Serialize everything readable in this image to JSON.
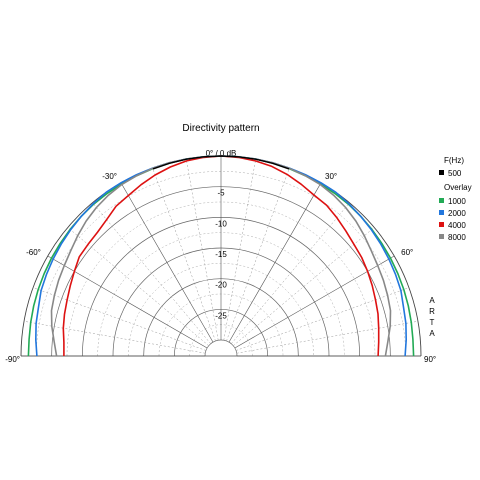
{
  "chart_data": {
    "type": "polar-line",
    "title": "Directivity pattern",
    "angle_unit": "deg",
    "angle_range": [
      -90,
      90
    ],
    "radial_range_db": [
      -30,
      0
    ],
    "angle_tick_labels": [
      "-90°",
      "-60°",
      "-30°",
      "0° / 0 dB",
      "30°",
      "60°",
      "90°"
    ],
    "radial_tick_labels": [
      "-5",
      "-10",
      "-15",
      "-20",
      "-25"
    ],
    "legend": {
      "placement": "right",
      "header": "F(Hz)",
      "reference": {
        "label": "500",
        "color": "#000000"
      },
      "overlay_header": "Overlay",
      "overlay_items": [
        {
          "label": "1000",
          "color": "#22aa55"
        },
        {
          "label": "2000",
          "color": "#2277dd"
        },
        {
          "label": "4000",
          "color": "#dd1111"
        },
        {
          "label": "8000",
          "color": "#888888"
        }
      ]
    },
    "watermark": "ARTA",
    "series": [
      {
        "name": "1000",
        "color": "#22aa55",
        "angles": [
          -90,
          -85,
          -80,
          -75,
          -70,
          -65,
          -60,
          -55,
          -50,
          -45,
          -40,
          -35,
          -30,
          -25,
          -20,
          -15,
          -10,
          -5,
          0,
          5,
          10,
          15,
          20,
          25,
          30,
          35,
          40,
          45,
          50,
          55,
          60,
          65,
          70,
          75,
          80,
          85,
          90
        ],
        "values": [
          -1.2,
          -1.2,
          -1.1,
          -1.0,
          -0.9,
          -0.8,
          -0.7,
          -0.6,
          -0.5,
          -0.4,
          -0.3,
          -0.25,
          -0.2,
          -0.15,
          -0.1,
          -0.05,
          0,
          0,
          0,
          0,
          0,
          -0.05,
          -0.1,
          -0.15,
          -0.2,
          -0.25,
          -0.3,
          -0.4,
          -0.5,
          -0.6,
          -0.7,
          -0.8,
          -0.9,
          -1.0,
          -1.1,
          -1.2,
          -1.2
        ]
      },
      {
        "name": "2000",
        "color": "#2277dd",
        "angles": [
          -90,
          -85,
          -80,
          -75,
          -70,
          -65,
          -60,
          -55,
          -50,
          -45,
          -40,
          -35,
          -30,
          -25,
          -20,
          -15,
          -10,
          -5,
          0,
          5,
          10,
          15,
          20,
          25,
          30,
          35,
          40,
          45,
          50,
          55,
          60,
          65,
          70,
          75,
          80,
          85,
          90
        ],
        "values": [
          -2.6,
          -2.3,
          -2.0,
          -1.8,
          -1.4,
          -1.2,
          -1.0,
          -0.8,
          -0.6,
          -0.4,
          -0.2,
          0,
          0,
          0,
          0,
          0,
          0,
          0,
          0,
          0,
          0,
          0,
          0,
          0,
          0,
          0,
          -0.2,
          -0.4,
          -0.6,
          -0.8,
          -1.0,
          -1.2,
          -1.4,
          -1.8,
          -2.0,
          -2.3,
          -2.6
        ]
      },
      {
        "name": "4000",
        "color": "#dd1111",
        "angles": [
          -90,
          -85,
          -80,
          -75,
          -70,
          -65,
          -60,
          -55,
          -50,
          -45,
          -40,
          -35,
          -30,
          -25,
          -20,
          -15,
          -10,
          -5,
          0,
          5,
          10,
          15,
          20,
          25,
          30,
          35,
          40,
          45,
          50,
          55,
          60,
          65,
          70,
          75,
          80,
          85,
          90
        ],
        "values": [
          -7.0,
          -6.9,
          -6.5,
          -6.2,
          -5.9,
          -5.5,
          -5.0,
          -4.4,
          -4.3,
          -4.1,
          -3.6,
          -2.8,
          -2.4,
          -1.8,
          -1.2,
          -0.7,
          -0.3,
          -0.1,
          0,
          -0.1,
          -0.3,
          -0.6,
          -1.1,
          -1.7,
          -2.3,
          -2.6,
          -3.2,
          -3.8,
          -4.3,
          -4.6,
          -5.0,
          -5.4,
          -5.8,
          -6.1,
          -6.5,
          -6.8,
          -7.0
        ]
      },
      {
        "name": "8000",
        "color": "#888888",
        "angles": [
          -90,
          -85,
          -80,
          -75,
          -70,
          -65,
          -60,
          -55,
          -50,
          -45,
          -40,
          -35,
          -30,
          -25,
          -20,
          -15,
          -10,
          -5,
          0,
          5,
          10,
          15,
          20,
          25,
          30,
          35,
          40,
          45,
          50,
          55,
          60,
          65,
          70,
          75,
          80,
          85,
          90
        ],
        "values": [
          -5.8,
          -5.3,
          -4.6,
          -4.0,
          -3.7,
          -3.4,
          -3.1,
          -2.7,
          -2.1,
          -1.5,
          -1.0,
          -0.6,
          -0.3,
          -0.15,
          -0.05,
          0,
          0,
          0,
          0,
          0,
          0,
          0,
          -0.05,
          -0.15,
          -0.3,
          -0.6,
          -1.0,
          -1.5,
          -2.1,
          -2.7,
          -3.1,
          -3.4,
          -3.7,
          -4.0,
          -4.6,
          -5.3,
          -5.8
        ]
      },
      {
        "name": "500",
        "color": "#000000",
        "angles": [
          -20,
          -15,
          -10,
          -5,
          0,
          5,
          10,
          15,
          20
        ],
        "values": [
          -0.15,
          -0.08,
          -0.03,
          0,
          0,
          0,
          -0.03,
          -0.08,
          -0.15
        ]
      }
    ]
  }
}
